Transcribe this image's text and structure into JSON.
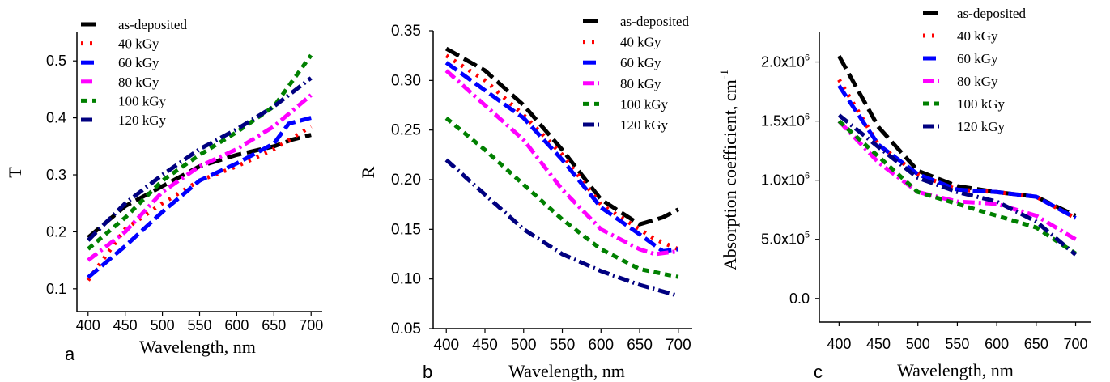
{
  "chart_data": [
    {
      "type": "line",
      "panel_label": "a",
      "xlabel": "Wavelength, nm",
      "ylabel": "T",
      "xlim": [
        385,
        715
      ],
      "ylim": [
        0.06,
        0.55
      ],
      "xticks": [
        "400",
        "450",
        "500",
        "550",
        "600",
        "650",
        "700"
      ],
      "yticks": [
        "0.1",
        "0.2",
        "0.3",
        "0.4",
        "0.5"
      ],
      "legend_position": "top-left",
      "series": [
        {
          "name": "as-deposited",
          "color": "#000000",
          "x": [
            400,
            450,
            500,
            550,
            600,
            650,
            675,
            700
          ],
          "y": [
            0.19,
            0.245,
            0.28,
            0.315,
            0.335,
            0.35,
            0.362,
            0.37
          ]
        },
        {
          "name": "40 kGy",
          "color": "#ff0000",
          "x": [
            400,
            450,
            500,
            550,
            600,
            650,
            700
          ],
          "y": [
            0.115,
            0.205,
            0.25,
            0.29,
            0.315,
            0.345,
            0.385
          ]
        },
        {
          "name": "60 kGy",
          "color": "#0000ff",
          "x": [
            400,
            450,
            500,
            550,
            600,
            650,
            670,
            700
          ],
          "y": [
            0.12,
            0.175,
            0.235,
            0.29,
            0.32,
            0.355,
            0.39,
            0.4
          ]
        },
        {
          "name": "80 kGy",
          "color": "#ff00ff",
          "x": [
            400,
            450,
            500,
            550,
            600,
            650,
            700
          ],
          "y": [
            0.15,
            0.2,
            0.27,
            0.315,
            0.345,
            0.385,
            0.44
          ]
        },
        {
          "name": "100 kGy",
          "color": "#008000",
          "x": [
            400,
            450,
            500,
            550,
            600,
            650,
            700
          ],
          "y": [
            0.17,
            0.225,
            0.29,
            0.335,
            0.375,
            0.42,
            0.51
          ]
        },
        {
          "name": "120 kGy",
          "color": "#000080",
          "x": [
            400,
            450,
            500,
            550,
            600,
            650,
            700
          ],
          "y": [
            0.185,
            0.25,
            0.3,
            0.345,
            0.38,
            0.42,
            0.47
          ]
        }
      ]
    },
    {
      "type": "line",
      "panel_label": "b",
      "xlabel": "Wavelength, nm",
      "ylabel": "R",
      "xlim": [
        383,
        718
      ],
      "ylim": [
        0.05,
        0.35
      ],
      "xticks": [
        "400",
        "450",
        "500",
        "550",
        "600",
        "650",
        "700"
      ],
      "yticks": [
        "0.05",
        "0.10",
        "0.15",
        "0.20",
        "0.25",
        "0.30",
        "0.35"
      ],
      "legend_position": "top-right",
      "series": [
        {
          "name": "as-deposited",
          "color": "#000000",
          "x": [
            400,
            450,
            500,
            550,
            600,
            650,
            680,
            700
          ],
          "y": [
            0.332,
            0.31,
            0.275,
            0.23,
            0.18,
            0.155,
            0.162,
            0.17
          ]
        },
        {
          "name": "40 kGy",
          "color": "#ff0000",
          "x": [
            400,
            450,
            500,
            550,
            600,
            650,
            670,
            700
          ],
          "y": [
            0.325,
            0.3,
            0.265,
            0.225,
            0.175,
            0.15,
            0.14,
            0.13
          ]
        },
        {
          "name": "60 kGy",
          "color": "#0000ff",
          "x": [
            400,
            450,
            500,
            550,
            600,
            650,
            680,
            700
          ],
          "y": [
            0.318,
            0.29,
            0.262,
            0.22,
            0.172,
            0.145,
            0.128,
            0.13
          ]
        },
        {
          "name": "80 kGy",
          "color": "#ff00ff",
          "x": [
            400,
            450,
            500,
            550,
            600,
            650,
            670,
            700
          ],
          "y": [
            0.31,
            0.275,
            0.24,
            0.19,
            0.15,
            0.13,
            0.125,
            0.128
          ]
        },
        {
          "name": "100 kGy",
          "color": "#008000",
          "x": [
            400,
            450,
            500,
            550,
            600,
            650,
            700
          ],
          "y": [
            0.262,
            0.23,
            0.195,
            0.16,
            0.13,
            0.11,
            0.102
          ]
        },
        {
          "name": "120 kGy",
          "color": "#000080",
          "x": [
            400,
            450,
            500,
            550,
            600,
            650,
            700
          ],
          "y": [
            0.22,
            0.185,
            0.15,
            0.125,
            0.108,
            0.094,
            0.083
          ]
        }
      ]
    },
    {
      "type": "line",
      "panel_label": "c",
      "xlabel": "Wavelength, nm",
      "ylabel": "Absorption coefficient, cm",
      "ylabel_superscript": "-1",
      "xlim": [
        375,
        720
      ],
      "ylim": [
        -200000,
        2250000
      ],
      "xticks": [
        "400",
        "450",
        "500",
        "550",
        "600",
        "650",
        "700"
      ],
      "yticks": [
        {
          "value": 0,
          "mantissa": "0.0",
          "exponent": ""
        },
        {
          "value": 500000,
          "mantissa": "5.0x10",
          "exponent": "5"
        },
        {
          "value": 1000000,
          "mantissa": "1.0x10",
          "exponent": "6"
        },
        {
          "value": 1500000,
          "mantissa": "1.5x10",
          "exponent": "6"
        },
        {
          "value": 2000000,
          "mantissa": "2.0x10",
          "exponent": "6"
        }
      ],
      "legend_position": "top-right",
      "series": [
        {
          "name": "as-deposited",
          "color": "#000000",
          "x": [
            400,
            450,
            500,
            550,
            600,
            650,
            700
          ],
          "y": [
            2050000,
            1450000,
            1080000,
            950000,
            900000,
            860000,
            700000
          ]
        },
        {
          "name": "40 kGy",
          "color": "#ff0000",
          "x": [
            400,
            450,
            500,
            550,
            600,
            650,
            700
          ],
          "y": [
            1850000,
            1300000,
            1050000,
            920000,
            900000,
            860000,
            680000
          ]
        },
        {
          "name": "60 kGy",
          "color": "#0000ff",
          "x": [
            400,
            450,
            500,
            550,
            600,
            650,
            700
          ],
          "y": [
            1800000,
            1300000,
            1050000,
            920000,
            900000,
            860000,
            680000
          ]
        },
        {
          "name": "80 kGy",
          "color": "#ff00ff",
          "x": [
            400,
            450,
            500,
            550,
            600,
            650,
            700
          ],
          "y": [
            1500000,
            1150000,
            900000,
            820000,
            800000,
            700000,
            500000
          ]
        },
        {
          "name": "100 kGy",
          "color": "#008000",
          "x": [
            400,
            450,
            500,
            550,
            600,
            650,
            700
          ],
          "y": [
            1500000,
            1200000,
            900000,
            800000,
            700000,
            600000,
            380000
          ]
        },
        {
          "name": "120 kGy",
          "color": "#000080",
          "x": [
            400,
            450,
            500,
            550,
            600,
            650,
            700
          ],
          "y": [
            1550000,
            1280000,
            1020000,
            900000,
            820000,
            650000,
            370000
          ]
        }
      ]
    }
  ]
}
